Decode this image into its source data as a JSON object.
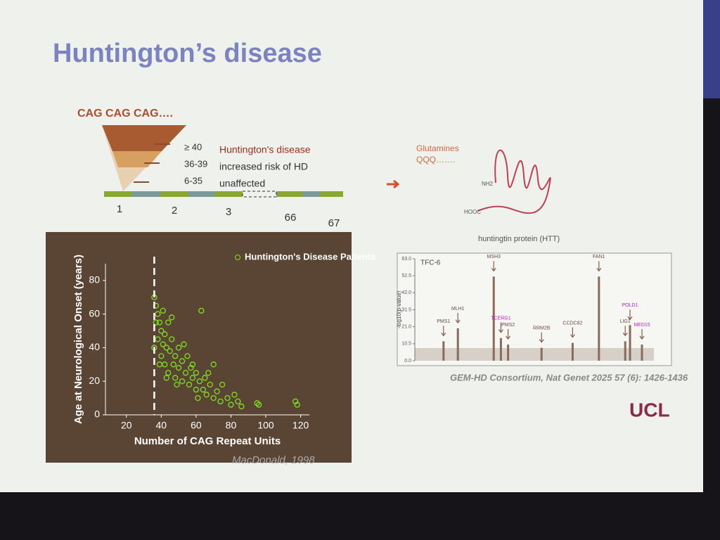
{
  "slide": {
    "title": "Huntington’s disease",
    "cag_header": "CAG CAG CAG….",
    "repeat_rows": [
      {
        "range": "≥ 40",
        "outcome": "Huntington's disease"
      },
      {
        "range": "36-39",
        "outcome": "increased risk of HD"
      },
      {
        "range": "6-35",
        "outcome": "unaffected"
      }
    ],
    "exons": [
      "1",
      "2",
      "3",
      "66",
      "67"
    ],
    "glutamines": [
      "Glutamines",
      "QQQ……."
    ],
    "protein_ends": [
      "NH2",
      "HOOC"
    ],
    "protein_caption": "huntingtin protein (HTT)",
    "scatter_citation": "MacDonald, 1998",
    "gwas_citation": "GEM-HD Consortium, Nat Genet 2025 57 (6): 1426-1436",
    "logo": "UCL"
  },
  "chart_data": [
    {
      "type": "scatter",
      "xlabel": "Number of CAG Repeat Units",
      "ylabel": "Age at Neurological Onset (years)",
      "xlim": [
        8,
        125
      ],
      "ylim": [
        0,
        90
      ],
      "xticks": [
        20,
        40,
        60,
        80,
        100,
        120
      ],
      "yticks": [
        0,
        20,
        40,
        60,
        80
      ],
      "vline": 36,
      "series": [
        {
          "name": "Huntington's Disease Patients",
          "color": "#7fe020",
          "x": [
            36,
            37,
            38,
            38,
            39,
            40,
            40,
            41,
            42,
            42,
            43,
            44,
            44,
            45,
            46,
            47,
            48,
            48,
            50,
            50,
            52,
            52,
            54,
            55,
            56,
            57,
            58,
            60,
            60,
            62,
            63,
            64,
            65,
            66,
            68,
            70,
            70,
            72,
            74,
            75,
            78,
            80,
            82,
            84,
            86,
            95,
            96,
            117,
            118,
            36,
            37,
            39,
            41,
            43,
            46,
            49,
            53,
            58,
            61,
            67
          ],
          "values": [
            70,
            65,
            60,
            45,
            55,
            50,
            35,
            62,
            48,
            30,
            40,
            55,
            25,
            38,
            45,
            30,
            35,
            22,
            40,
            28,
            32,
            20,
            25,
            35,
            18,
            28,
            22,
            15,
            25,
            20,
            62,
            15,
            22,
            12,
            18,
            10,
            30,
            14,
            8,
            18,
            10,
            6,
            12,
            8,
            5,
            7,
            6,
            8,
            6,
            40,
            55,
            30,
            42,
            22,
            58,
            18,
            42,
            30,
            10,
            25
          ]
        }
      ]
    },
    {
      "type": "bar",
      "title": "TFC-6",
      "ylabel": "-log10(p-value)",
      "xlim": [
        0,
        100
      ],
      "ylim": [
        0,
        63
      ],
      "yticks": [
        {
          "value": 0,
          "label": "0.0"
        },
        {
          "value": 10.5,
          "label": "10.5"
        },
        {
          "value": 21,
          "label": "21.0"
        },
        {
          "value": 31.5,
          "label": "31.5"
        },
        {
          "value": 42,
          "label": "42.0"
        },
        {
          "value": 52.5,
          "label": "52.5"
        },
        {
          "value": 63,
          "label": "63.0"
        }
      ],
      "color": "#8a6a5a",
      "x": [
        12,
        18,
        33,
        36,
        39,
        53,
        66,
        77,
        88,
        90,
        95
      ],
      "values": [
        12,
        20,
        52,
        14,
        10,
        8,
        11,
        52,
        12,
        22,
        10
      ],
      "labels": [
        "PMS1",
        "MLH1",
        "MSH3",
        "TCERG1",
        "PMS2",
        "RRM2B",
        "CCDC82",
        "FAN1",
        "LIG1",
        "POLD1",
        "MED15"
      ],
      "label_colors": [
        "#6a4a4a",
        "#6a4a4a",
        "#6a4a4a",
        "#c020c0",
        "#6a4a4a",
        "#6a4a4a",
        "#6a4a4a",
        "#6a4a4a",
        "#6a4a4a",
        "#c020c0",
        "#c020c0"
      ]
    }
  ]
}
